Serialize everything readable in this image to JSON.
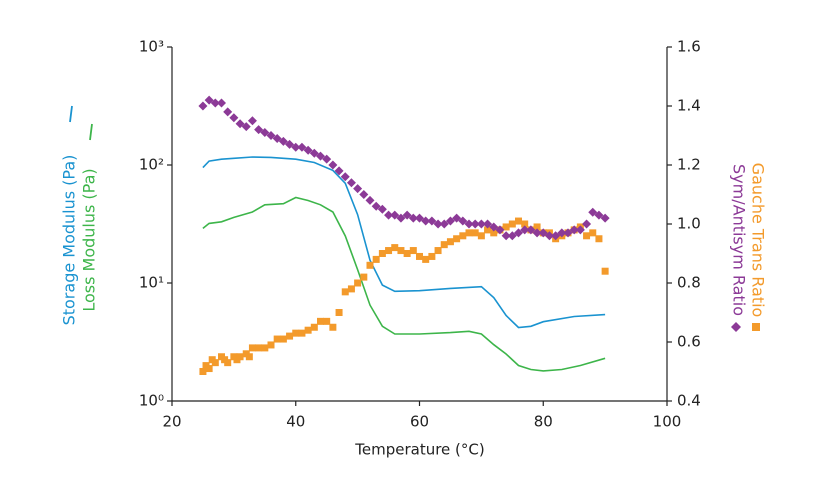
{
  "chart_data": {
    "type": "line",
    "xlabel": "Temperature (°C)",
    "xlim": [
      20,
      100
    ],
    "xticks": [
      20,
      40,
      60,
      80,
      100
    ],
    "ylim": [
      1,
      1000
    ],
    "yscale": "log",
    "yticks": [
      {
        "value": 1,
        "label": "10⁰"
      },
      {
        "value": 10,
        "label": "10¹"
      },
      {
        "value": 100,
        "label": "10²"
      },
      {
        "value": 1000,
        "label": "10³"
      }
    ],
    "y2lim": [
      0.4,
      1.6
    ],
    "y2ticks": [
      0.4,
      0.6,
      0.8,
      {
        "value": 1,
        "label": "1.0"
      },
      1.2,
      1.4,
      1.6
    ],
    "series": [
      {
        "name": "Storage Modulus (Pa)",
        "type": "line",
        "color": "#1a93d0",
        "x": [
          25,
          26,
          28,
          30,
          33,
          36,
          40,
          43,
          46,
          48,
          50,
          52,
          54,
          56,
          60,
          65,
          70,
          72,
          74,
          76,
          78,
          80,
          85,
          90
        ],
        "values": [
          95,
          108,
          112,
          114,
          117,
          116,
          112,
          105,
          90,
          70,
          38,
          15.6,
          9.6,
          8.5,
          8.6,
          9.0,
          9.3,
          7.5,
          5.3,
          4.2,
          4.3,
          4.7,
          5.2,
          5.4
        ]
      },
      {
        "name": "Loss Modulus (Pa)",
        "type": "line",
        "color": "#3db54a",
        "x": [
          25,
          26,
          28,
          30,
          33,
          35,
          38,
          40,
          42,
          44,
          46,
          48,
          50,
          52,
          54,
          56,
          60,
          65,
          68,
          70,
          72,
          74,
          76,
          78,
          80,
          83,
          86,
          90
        ],
        "values": [
          29,
          32,
          33,
          36,
          40,
          46,
          47,
          53,
          50,
          46,
          40,
          25,
          13,
          6.5,
          4.3,
          3.7,
          3.7,
          3.8,
          3.9,
          3.7,
          3.0,
          2.5,
          2.0,
          1.85,
          1.8,
          1.85,
          2.0,
          2.3
        ]
      },
      {
        "name": "Gauche Trans Ratio",
        "type": "scatter",
        "axis": "y2",
        "marker": "square",
        "color": "#f39a2b",
        "x": [
          25,
          25.5,
          26,
          26.5,
          27,
          28,
          28.5,
          29,
          30,
          30.5,
          31,
          32,
          32.5,
          33,
          34,
          35,
          36,
          37,
          38,
          39,
          40,
          41,
          42,
          43,
          44,
          45,
          46,
          47,
          48,
          49,
          50,
          51,
          52,
          53,
          54,
          55,
          56,
          57,
          58,
          59,
          60,
          61,
          62,
          63,
          64,
          65,
          66,
          67,
          68,
          69,
          70,
          71,
          72,
          73,
          74,
          75,
          76,
          77,
          78,
          79,
          80,
          81,
          82,
          83,
          84,
          85,
          86,
          87,
          88,
          89,
          90
        ],
        "values": [
          0.5,
          0.52,
          0.51,
          0.54,
          0.53,
          0.55,
          0.54,
          0.53,
          0.55,
          0.54,
          0.55,
          0.56,
          0.55,
          0.58,
          0.58,
          0.58,
          0.59,
          0.61,
          0.61,
          0.62,
          0.63,
          0.63,
          0.64,
          0.65,
          0.67,
          0.67,
          0.65,
          0.7,
          0.77,
          0.78,
          0.8,
          0.82,
          0.86,
          0.88,
          0.9,
          0.91,
          0.92,
          0.91,
          0.9,
          0.91,
          0.89,
          0.88,
          0.89,
          0.91,
          0.93,
          0.94,
          0.95,
          0.96,
          0.97,
          0.97,
          0.96,
          0.98,
          0.97,
          0.98,
          0.99,
          1.0,
          1.01,
          1.0,
          0.98,
          0.99,
          0.97,
          0.97,
          0.95,
          0.96,
          0.97,
          0.98,
          0.99,
          0.96,
          0.97,
          0.95,
          0.84
        ]
      },
      {
        "name": "Sym/Antisym Ratio",
        "type": "scatter",
        "axis": "y2",
        "marker": "diamond",
        "color": "#8c3a97",
        "x": [
          25,
          26,
          27,
          28,
          29,
          30,
          31,
          32,
          33,
          34,
          35,
          36,
          37,
          38,
          39,
          40,
          41,
          42,
          43,
          44,
          45,
          46,
          47,
          48,
          49,
          50,
          51,
          52,
          53,
          54,
          55,
          56,
          57,
          58,
          59,
          60,
          61,
          62,
          63,
          64,
          65,
          66,
          67,
          68,
          69,
          70,
          71,
          72,
          73,
          74,
          75,
          76,
          77,
          78,
          79,
          80,
          81,
          82,
          83,
          84,
          85,
          86,
          87,
          88,
          89,
          90
        ],
        "values": [
          1.4,
          1.42,
          1.41,
          1.41,
          1.38,
          1.36,
          1.34,
          1.33,
          1.35,
          1.32,
          1.31,
          1.3,
          1.29,
          1.28,
          1.27,
          1.26,
          1.26,
          1.25,
          1.24,
          1.23,
          1.22,
          1.2,
          1.18,
          1.16,
          1.14,
          1.12,
          1.1,
          1.08,
          1.06,
          1.05,
          1.03,
          1.03,
          1.02,
          1.03,
          1.02,
          1.02,
          1.01,
          1.01,
          1.0,
          1.0,
          1.01,
          1.02,
          1.01,
          1.0,
          1.0,
          1.0,
          1.0,
          0.99,
          0.98,
          0.96,
          0.96,
          0.97,
          0.98,
          0.98,
          0.97,
          0.97,
          0.96,
          0.96,
          0.97,
          0.97,
          0.98,
          0.98,
          1.0,
          1.04,
          1.03,
          1.02
        ]
      }
    ]
  }
}
